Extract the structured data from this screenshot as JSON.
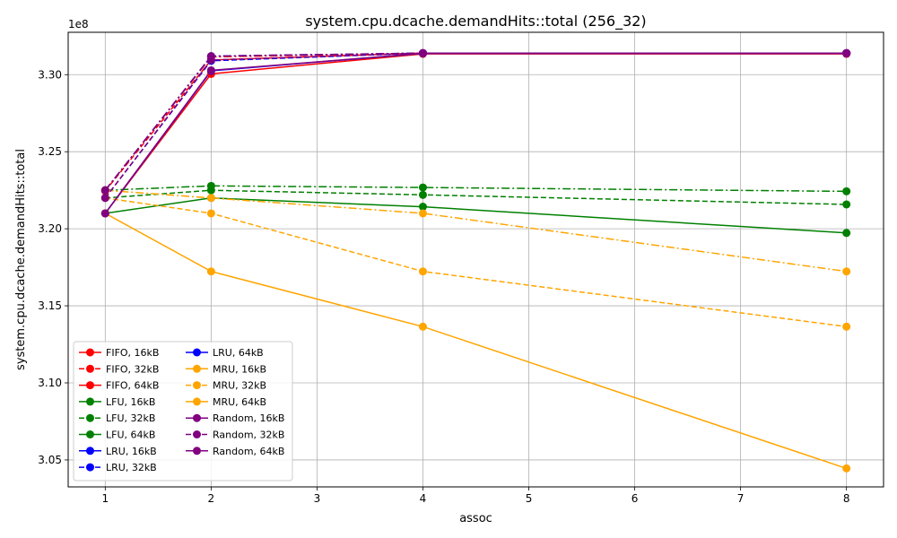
{
  "chart_data": {
    "type": "line",
    "title": "system.cpu.dcache.demandHits::total (256_32)",
    "xlabel": "assoc",
    "ylabel": "system.cpu.dcache.demandHits::total",
    "y_offset_label": "1e8",
    "y_multiplier": 100000000,
    "xlim": [
      0.65,
      8.35
    ],
    "ylim": [
      3.0325,
      3.3275
    ],
    "x_ticks": [
      1,
      2,
      3,
      4,
      5,
      6,
      7,
      8
    ],
    "y_ticks": [
      3.05,
      3.1,
      3.15,
      3.2,
      3.25,
      3.3
    ],
    "y_tick_labels": [
      "3.05",
      "3.10",
      "3.15",
      "3.20",
      "3.25",
      "3.30"
    ],
    "grid": true,
    "legend_position": "lower-left",
    "legend_columns": 2,
    "x": [
      1,
      2,
      4,
      8
    ],
    "series": [
      {
        "name": "FIFO, 16kB",
        "color": "#ff0000",
        "dash": "solid",
        "values": [
          3.21,
          3.3005,
          3.3135,
          3.3135
        ]
      },
      {
        "name": "FIFO, 32kB",
        "color": "#ff0000",
        "dash": "dashed",
        "values": [
          3.2245,
          3.3095,
          3.314,
          3.314
        ]
      },
      {
        "name": "FIFO, 64kB",
        "color": "#ff0000",
        "dash": "dashdot",
        "values": [
          3.225,
          3.3115,
          3.314,
          3.314
        ]
      },
      {
        "name": "LFU, 16kB",
        "color": "#008000",
        "dash": "solid",
        "values": [
          3.21,
          3.22,
          3.2143,
          3.1973
        ]
      },
      {
        "name": "LFU, 32kB",
        "color": "#008000",
        "dash": "dashed",
        "values": [
          3.22,
          3.225,
          3.222,
          3.2158
        ]
      },
      {
        "name": "LFU, 64kB",
        "color": "#008000",
        "dash": "dashdot",
        "values": [
          3.225,
          3.2278,
          3.2268,
          3.2243
        ]
      },
      {
        "name": "LRU, 16kB",
        "color": "#0000ff",
        "dash": "solid",
        "values": [
          3.21,
          3.3025,
          3.3138,
          3.3138
        ]
      },
      {
        "name": "LRU, 32kB",
        "color": "#0000ff",
        "dash": "dashed",
        "values": [
          3.22,
          3.309,
          3.314,
          3.314
        ]
      },
      {
        "name": "LRU, 64kB",
        "color": "#0000ff",
        "dash": "dashdot",
        "values": [
          3.225,
          3.312,
          3.314,
          3.314
        ]
      },
      {
        "name": "MRU, 16kB",
        "color": "#ffa500",
        "dash": "solid",
        "values": [
          3.21,
          3.1723,
          3.1365,
          3.0445
        ]
      },
      {
        "name": "MRU, 32kB",
        "color": "#ffa500",
        "dash": "dashed",
        "values": [
          3.22,
          3.21,
          3.1723,
          3.1365
        ]
      },
      {
        "name": "MRU, 64kB",
        "color": "#ffa500",
        "dash": "dashdot",
        "values": [
          3.225,
          3.22,
          3.21,
          3.1723
        ]
      },
      {
        "name": "Random, 16kB",
        "color": "#800080",
        "dash": "solid",
        "values": [
          3.21,
          3.3028,
          3.3138,
          3.3138
        ]
      },
      {
        "name": "Random, 32kB",
        "color": "#800080",
        "dash": "dashed",
        "values": [
          3.22,
          3.3095,
          3.314,
          3.314
        ]
      },
      {
        "name": "Random, 64kB",
        "color": "#800080",
        "dash": "dashdot",
        "values": [
          3.225,
          3.312,
          3.314,
          3.314
        ]
      }
    ]
  }
}
